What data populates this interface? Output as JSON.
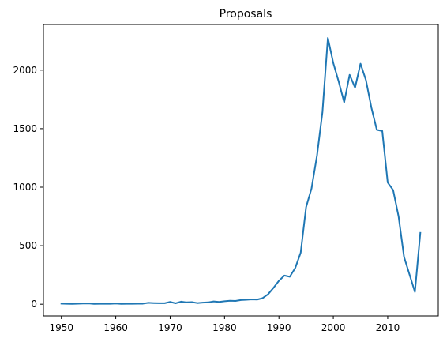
{
  "chart_data": {
    "type": "line",
    "title": "Proposals",
    "xlabel": "",
    "ylabel": "",
    "grid": false,
    "xlim": [
      1946.7,
      2019.3
    ],
    "ylim": [
      -100,
      2390
    ],
    "x_ticks": [
      1950,
      1960,
      1970,
      1980,
      1990,
      2000,
      2010
    ],
    "y_ticks": [
      0,
      500,
      1000,
      1500,
      2000
    ],
    "x": [
      1950,
      1951,
      1952,
      1953,
      1954,
      1955,
      1956,
      1957,
      1958,
      1959,
      1960,
      1961,
      1962,
      1963,
      1964,
      1965,
      1966,
      1967,
      1968,
      1969,
      1970,
      1971,
      1972,
      1973,
      1974,
      1975,
      1976,
      1977,
      1978,
      1979,
      1980,
      1981,
      1982,
      1983,
      1984,
      1985,
      1986,
      1987,
      1988,
      1989,
      1990,
      1991,
      1992,
      1993,
      1994,
      1995,
      1996,
      1997,
      1998,
      1999,
      2000,
      2001,
      2002,
      2003,
      2004,
      2005,
      2006,
      2007,
      2008,
      2009,
      2010,
      2011,
      2012,
      2013,
      2014,
      2015,
      2016
    ],
    "series": [
      {
        "values": [
          5,
          4,
          3,
          5,
          6,
          7,
          3,
          4,
          4,
          4,
          6,
          3,
          4,
          4,
          5,
          5,
          12,
          10,
          9,
          9,
          20,
          8,
          22,
          16,
          18,
          10,
          14,
          16,
          24,
          20,
          26,
          30,
          28,
          36,
          38,
          42,
          40,
          52,
          85,
          140,
          200,
          245,
          235,
          310,
          440,
          830,
          990,
          1270,
          1640,
          2275,
          2060,
          1900,
          1725,
          1960,
          1850,
          2055,
          1915,
          1680,
          1490,
          1480,
          1040,
          975,
          750,
          405,
          255,
          105,
          610
        ]
      }
    ]
  }
}
